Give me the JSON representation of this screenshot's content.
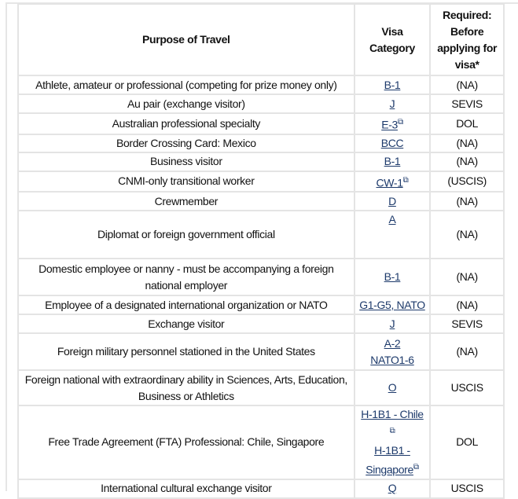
{
  "header": {
    "purpose": "Purpose of Travel",
    "visa": "Visa Category",
    "required": "Required: Before applying for visa*"
  },
  "link_color": "#1d3a6b",
  "rows": [
    {
      "purpose": "Athlete, amateur or professional (competing for prize money only)",
      "visa": [
        "B-1"
      ],
      "required": "(NA)"
    },
    {
      "purpose": "Au pair (exchange visitor)",
      "visa": [
        "J"
      ],
      "required": "SEVIS"
    },
    {
      "purpose": "Australian professional specialty",
      "visa": [
        "E-3"
      ],
      "external": true,
      "required": "DOL"
    },
    {
      "purpose": "Border Crossing Card: Mexico",
      "visa": [
        "BCC"
      ],
      "required": "(NA)"
    },
    {
      "purpose": "Business visitor",
      "visa": [
        "B-1"
      ],
      "required": "(NA)"
    },
    {
      "purpose": "CNMI-only transitional worker",
      "visa": [
        "CW-1"
      ],
      "external": true,
      "required": "(USCIS)"
    },
    {
      "purpose": "Crewmember",
      "visa": [
        "D"
      ],
      "required": "(NA)"
    },
    {
      "purpose": "Diplomat or foreign government official",
      "visa": [
        "A"
      ],
      "required": "(NA)"
    },
    {
      "purpose": "Domestic employee or nanny - must be accompanying a foreign national employer",
      "visa": [
        "B-1"
      ],
      "required": "(NA)"
    },
    {
      "purpose": "Employee of a designated international organization or NATO",
      "visa": [
        "G1-G5, NATO"
      ],
      "required": "(NA)"
    },
    {
      "purpose": "Exchange visitor",
      "visa": [
        "J"
      ],
      "required": "SEVIS"
    },
    {
      "purpose": "Foreign military personnel stationed in the United States",
      "visa": [
        "A-2",
        "NATO1-6"
      ],
      "required": "(NA)"
    },
    {
      "purpose": "Foreign national with extraordinary ability in Sciences, Arts, Education, Business or Athletics",
      "visa": [
        "O"
      ],
      "required": "USCIS"
    },
    {
      "purpose": "Free Trade Agreement (FTA) Professional: Chile, Singapore",
      "visa": [
        "H-1B1 - Chile",
        "H-1B1 - Singapore"
      ],
      "external": true,
      "required": "DOL"
    },
    {
      "purpose": "International cultural exchange visitor",
      "visa": [
        "Q"
      ],
      "required": "USCIS"
    }
  ]
}
